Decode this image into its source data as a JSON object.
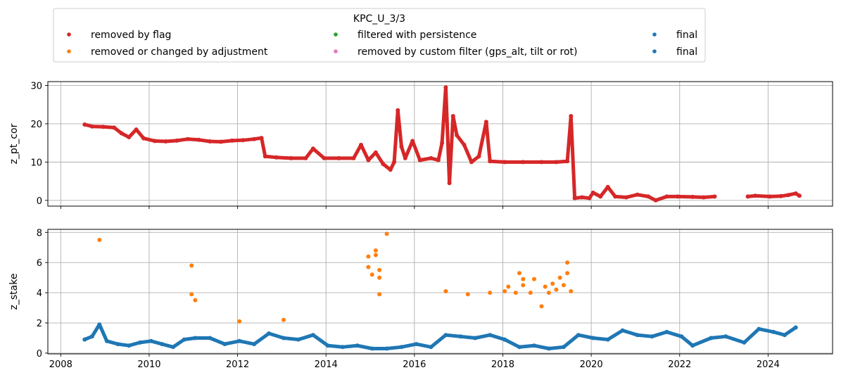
{
  "chart_data": {
    "type": "scatter",
    "legend": {
      "title": "KPC_U_3/3",
      "placement": "top-center",
      "entries": [
        {
          "label": "removed by flag",
          "color": "#d62728"
        },
        {
          "label": "removed or changed by adjustment",
          "color": "#ff7f0e"
        },
        {
          "label": "filtered with persistence",
          "color": "#2ca02c"
        },
        {
          "label": "removed by custom filter (gps_alt, tilt or rot)",
          "color": "#e377c2"
        },
        {
          "label": "final",
          "color": "#1f77b4"
        },
        {
          "label": "final",
          "color": "#1f77b4"
        }
      ]
    },
    "x_ticks": [
      "2008",
      "2010",
      "2012",
      "2014",
      "2016",
      "2018",
      "2020",
      "2022",
      "2024"
    ],
    "xlim": [
      "2007-09",
      "2025-06"
    ],
    "grid": true,
    "panels": [
      {
        "ylabel": "z_pt_cor",
        "ylim": [
          -1.5,
          31
        ],
        "y_ticks": [
          "0",
          "10",
          "20",
          "30"
        ],
        "series": [
          {
            "color": "#d62728",
            "points": [
              [
                "2008-07",
                19.8
              ],
              [
                "2008-09",
                19.3
              ],
              [
                "2008-12",
                19.2
              ],
              [
                "2009-03",
                19.0
              ],
              [
                "2009-05",
                17.5
              ],
              [
                "2009-07",
                16.5
              ],
              [
                "2009-09",
                18.5
              ],
              [
                "2009-11",
                16.2
              ],
              [
                "2010-02",
                15.5
              ],
              [
                "2010-05",
                15.4
              ],
              [
                "2010-08",
                15.6
              ],
              [
                "2010-11",
                16.0
              ],
              [
                "2011-02",
                15.8
              ],
              [
                "2011-05",
                15.4
              ],
              [
                "2011-08",
                15.3
              ],
              [
                "2011-11",
                15.6
              ],
              [
                "2012-02",
                15.7
              ],
              [
                "2012-05",
                16.0
              ],
              [
                "2012-07",
                16.3
              ],
              [
                "2012-08",
                11.5
              ],
              [
                "2012-11",
                11.2
              ],
              [
                "2013-03",
                11.0
              ],
              [
                "2013-07",
                11.0
              ],
              [
                "2013-09",
                13.5
              ],
              [
                "2013-12",
                11.0
              ],
              [
                "2014-04",
                11.0
              ],
              [
                "2014-08",
                11.0
              ],
              [
                "2014-10",
                14.5
              ],
              [
                "2014-12",
                10.5
              ],
              [
                "2015-02",
                12.5
              ],
              [
                "2015-04",
                9.5
              ],
              [
                "2015-06",
                8.0
              ],
              [
                "2015-07",
                10.0
              ],
              [
                "2015-08",
                23.5
              ],
              [
                "2015-09",
                14.0
              ],
              [
                "2015-10",
                11.0
              ],
              [
                "2015-12",
                15.5
              ],
              [
                "2016-02",
                10.5
              ],
              [
                "2016-05",
                11.0
              ],
              [
                "2016-07",
                10.5
              ],
              [
                "2016-08",
                15.0
              ],
              [
                "2016-09",
                29.5
              ],
              [
                "2016-10",
                4.5
              ],
              [
                "2016-11",
                22.0
              ],
              [
                "2016-12",
                17.0
              ],
              [
                "2017-02",
                14.5
              ],
              [
                "2017-04",
                10.0
              ],
              [
                "2017-06",
                11.5
              ],
              [
                "2017-08",
                20.5
              ],
              [
                "2017-09",
                10.2
              ],
              [
                "2018-01",
                10.0
              ],
              [
                "2018-06",
                10.0
              ],
              [
                "2018-11",
                10.0
              ],
              [
                "2019-03",
                10.0
              ],
              [
                "2019-06",
                10.2
              ],
              [
                "2019-07",
                22.0
              ],
              [
                "2019-08",
                0.6
              ],
              [
                "2019-10",
                0.8
              ],
              [
                "2019-12",
                0.6
              ],
              [
                "2020-01",
                2.0
              ],
              [
                "2020-03",
                1.0
              ],
              [
                "2020-05",
                3.5
              ],
              [
                "2020-07",
                1.0
              ],
              [
                "2020-10",
                0.8
              ],
              [
                "2021-01",
                1.5
              ],
              [
                "2021-04",
                1.0
              ],
              [
                "2021-06",
                0.0
              ],
              [
                "2021-09",
                1.0
              ],
              [
                "2021-12",
                1.0
              ],
              [
                "2022-04",
                0.9
              ],
              [
                "2022-07",
                0.8
              ],
              [
                "2022-10",
                1.0
              ],
              [
                "2023-07",
                1.0
              ],
              [
                "2023-09",
                1.2
              ],
              [
                "2024-01",
                1.0
              ],
              [
                "2024-04",
                1.1
              ],
              [
                "2024-06",
                1.4
              ],
              [
                "2024-08",
                1.8
              ],
              [
                "2024-09",
                1.2
              ]
            ]
          }
        ]
      },
      {
        "ylabel": "z_stake",
        "ylim": [
          -0.05,
          8.2
        ],
        "y_ticks": [
          "0",
          "2",
          "4",
          "6",
          "8"
        ],
        "series": [
          {
            "color": "#ff7f0e",
            "points": [
              [
                "2008-11",
                7.5
              ],
              [
                "2010-12",
                5.8
              ],
              [
                "2010-12",
                3.9
              ],
              [
                "2011-01",
                3.5
              ],
              [
                "2012-01",
                2.1
              ],
              [
                "2013-01",
                2.2
              ],
              [
                "2014-12",
                6.4
              ],
              [
                "2014-12",
                5.7
              ],
              [
                "2015-01",
                5.2
              ],
              [
                "2015-02",
                6.8
              ],
              [
                "2015-02",
                6.5
              ],
              [
                "2015-03",
                5.5
              ],
              [
                "2015-03",
                5.0
              ],
              [
                "2015-03",
                3.9
              ],
              [
                "2015-05",
                7.9
              ],
              [
                "2016-09",
                4.1
              ],
              [
                "2017-03",
                3.9
              ],
              [
                "2017-09",
                4.0
              ],
              [
                "2018-01",
                4.1
              ],
              [
                "2018-02",
                4.4
              ],
              [
                "2018-04",
                4.0
              ],
              [
                "2018-05",
                5.3
              ],
              [
                "2018-06",
                4.5
              ],
              [
                "2018-06",
                4.9
              ],
              [
                "2018-08",
                4.0
              ],
              [
                "2018-09",
                4.9
              ],
              [
                "2018-11",
                3.1
              ],
              [
                "2018-12",
                4.4
              ],
              [
                "2019-01",
                4.0
              ],
              [
                "2019-02",
                4.6
              ],
              [
                "2019-03",
                4.2
              ],
              [
                "2019-04",
                5.0
              ],
              [
                "2019-05",
                4.5
              ],
              [
                "2019-06",
                6.0
              ],
              [
                "2019-06",
                5.3
              ],
              [
                "2019-07",
                4.1
              ]
            ]
          },
          {
            "color": "#1f77b4",
            "points": [
              [
                "2008-07",
                0.9
              ],
              [
                "2008-09",
                1.1
              ],
              [
                "2008-11",
                1.9
              ],
              [
                "2009-01",
                0.8
              ],
              [
                "2009-04",
                0.6
              ],
              [
                "2009-07",
                0.5
              ],
              [
                "2009-10",
                0.7
              ],
              [
                "2010-01",
                0.8
              ],
              [
                "2010-04",
                0.6
              ],
              [
                "2010-07",
                0.4
              ],
              [
                "2010-10",
                0.9
              ],
              [
                "2011-01",
                1.0
              ],
              [
                "2011-05",
                1.0
              ],
              [
                "2011-09",
                0.6
              ],
              [
                "2012-01",
                0.8
              ],
              [
                "2012-05",
                0.6
              ],
              [
                "2012-09",
                1.3
              ],
              [
                "2013-01",
                1.0
              ],
              [
                "2013-05",
                0.9
              ],
              [
                "2013-09",
                1.2
              ],
              [
                "2014-01",
                0.5
              ],
              [
                "2014-05",
                0.4
              ],
              [
                "2014-09",
                0.5
              ],
              [
                "2015-01",
                0.3
              ],
              [
                "2015-05",
                0.3
              ],
              [
                "2015-09",
                0.4
              ],
              [
                "2016-01",
                0.6
              ],
              [
                "2016-05",
                0.4
              ],
              [
                "2016-09",
                1.2
              ],
              [
                "2017-01",
                1.1
              ],
              [
                "2017-05",
                1.0
              ],
              [
                "2017-09",
                1.2
              ],
              [
                "2018-01",
                0.9
              ],
              [
                "2018-05",
                0.4
              ],
              [
                "2018-09",
                0.5
              ],
              [
                "2019-01",
                0.3
              ],
              [
                "2019-05",
                0.4
              ],
              [
                "2019-09",
                1.2
              ],
              [
                "2020-01",
                1.0
              ],
              [
                "2020-05",
                0.9
              ],
              [
                "2020-09",
                1.5
              ],
              [
                "2021-01",
                1.2
              ],
              [
                "2021-05",
                1.1
              ],
              [
                "2021-09",
                1.4
              ],
              [
                "2022-01",
                1.1
              ],
              [
                "2022-04",
                0.5
              ],
              [
                "2022-09",
                1.0
              ],
              [
                "2023-01",
                1.1
              ],
              [
                "2023-06",
                0.7
              ],
              [
                "2023-10",
                1.6
              ],
              [
                "2024-02",
                1.4
              ],
              [
                "2024-05",
                1.2
              ],
              [
                "2024-08",
                1.7
              ]
            ]
          }
        ]
      }
    ]
  }
}
